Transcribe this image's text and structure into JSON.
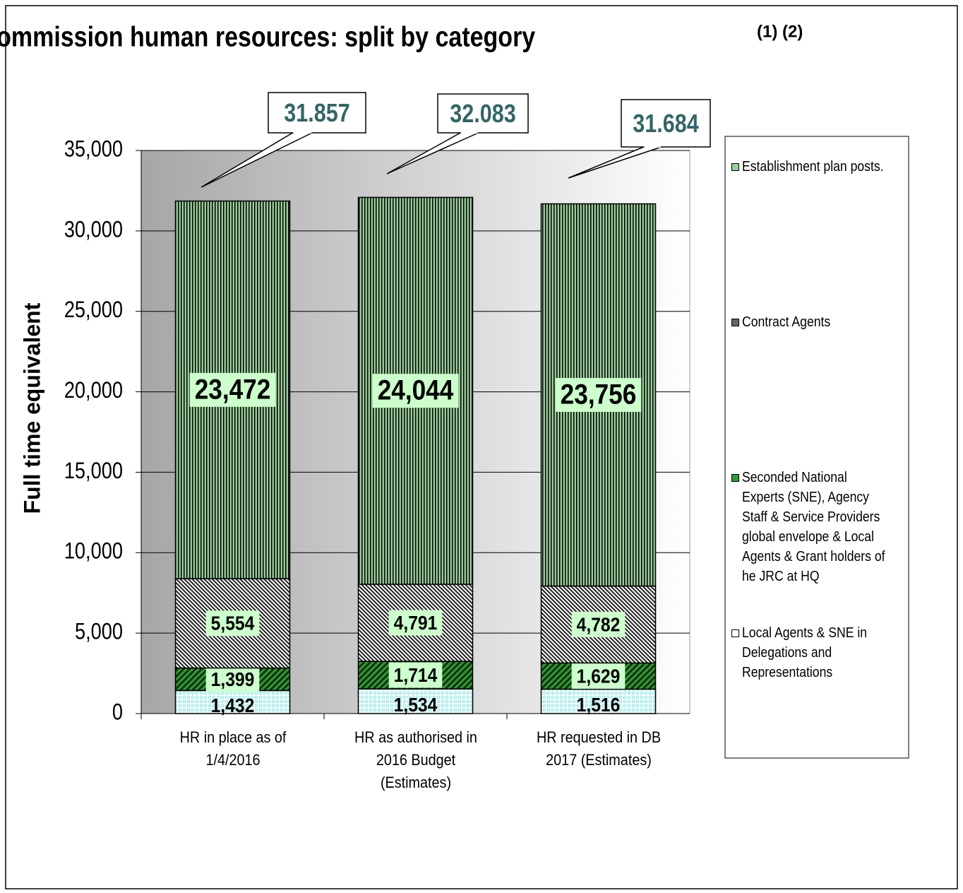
{
  "chart_data": {
    "type": "stacked_bar",
    "title": "Commission human resources: split by category",
    "title_note": "(1) (2)",
    "y_label": "Full time equivalent",
    "categories": [
      "HR in place as of 1/4/2016",
      "HR as authorised in 2016 Budget (Estimates)",
      "HR requested in DB 2017 (Estimates)"
    ],
    "series": [
      {
        "name": "Local Agents & SNE in Delegations and Representations",
        "color": "#ccffff",
        "values": [
          1432,
          1534,
          1516
        ],
        "value_labels": [
          "1,432",
          "1,534",
          "1,516"
        ]
      },
      {
        "name": "Seconded National Experts (SNE), Agency Staff & Service Providers global envelope  & Local Agents & Grant holders of he JRC at HQ",
        "color": "#339933",
        "values": [
          1399,
          1714,
          1629
        ],
        "value_labels": [
          "1,399",
          "1,714",
          "1,629"
        ]
      },
      {
        "name": "Contract Agents",
        "color": "#666666",
        "values": [
          5554,
          4791,
          4782
        ],
        "value_labels": [
          "5,554",
          "4,791",
          "4,782"
        ]
      },
      {
        "name": "Establishment plan posts.",
        "color": "#99cc99",
        "values": [
          23472,
          24044,
          23756
        ],
        "value_labels": [
          "23,472",
          "24,044",
          "23,756"
        ]
      }
    ],
    "annotations": [
      "31.857",
      "32.083",
      "31.684"
    ],
    "ylim": [
      0,
      35000
    ],
    "yticks": [
      0,
      {
        "value": 5000,
        "label": "5,000"
      },
      {
        "value": 10000,
        "label": "10,000"
      },
      {
        "value": 15000,
        "label": "15,000"
      },
      {
        "value": 20000,
        "label": "20,000"
      },
      {
        "value": 25000,
        "label": "25,000"
      },
      {
        "value": 30000,
        "label": "30,000"
      },
      {
        "value": 35000,
        "label": "35,000"
      }
    ],
    "grid": true
  }
}
